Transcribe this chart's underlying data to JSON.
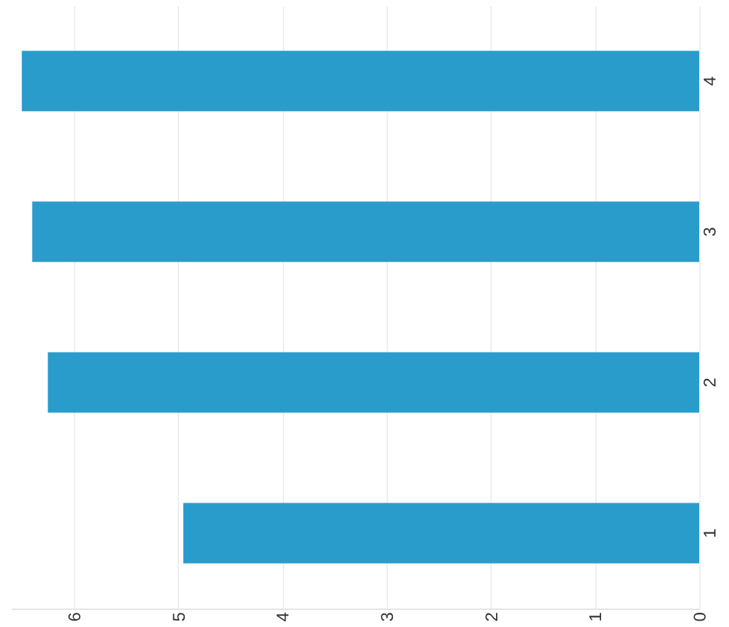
{
  "chart_data": {
    "type": "bar",
    "orientation": "horizontal",
    "categories": [
      "4",
      "3",
      "2",
      "1"
    ],
    "series": [
      {
        "color": "#2a9ccb",
        "values": [
          6.5,
          6.4,
          6.25,
          4.95
        ]
      }
    ],
    "xlim": [
      6.6,
      0
    ],
    "xticks": [
      0,
      1,
      2,
      3,
      4,
      5,
      6
    ],
    "grid": "x"
  }
}
